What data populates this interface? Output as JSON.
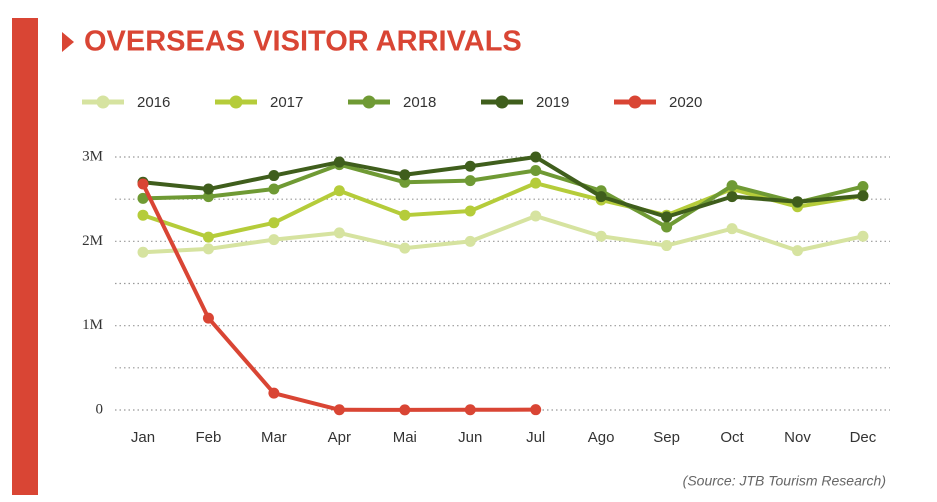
{
  "chart_data": {
    "type": "line",
    "title": "OVERSEAS VISITOR ARRIVALS",
    "source": "(Source: JTB Tourism Research)",
    "categories": [
      "Jan",
      "Feb",
      "Mar",
      "Apr",
      "Mai",
      "Jun",
      "Jul",
      "Ago",
      "Sep",
      "Oct",
      "Nov",
      "Dec"
    ],
    "series": [
      {
        "name": "2016",
        "color": "#d6e3a0",
        "values": [
          1870000,
          1910000,
          2020000,
          2100000,
          1920000,
          2000000,
          2300000,
          2060000,
          1950000,
          2150000,
          1890000,
          2060000
        ]
      },
      {
        "name": "2017",
        "color": "#b5cc3a",
        "values": [
          2310000,
          2050000,
          2220000,
          2600000,
          2310000,
          2360000,
          2690000,
          2490000,
          2310000,
          2620000,
          2410000,
          2540000
        ]
      },
      {
        "name": "2018",
        "color": "#6f9a34",
        "values": [
          2510000,
          2530000,
          2620000,
          2910000,
          2700000,
          2720000,
          2840000,
          2600000,
          2170000,
          2660000,
          2460000,
          2650000
        ]
      },
      {
        "name": "2019",
        "color": "#3f5e1c",
        "values": [
          2700000,
          2620000,
          2780000,
          2940000,
          2790000,
          2890000,
          3000000,
          2530000,
          2290000,
          2530000,
          2470000,
          2540000
        ]
      },
      {
        "name": "2020",
        "color": "#d94534",
        "values": [
          2680000,
          1090000,
          200000,
          2900,
          1700,
          2600,
          3800,
          null,
          null,
          null,
          null,
          null
        ]
      }
    ],
    "ylim": [
      0,
      3000000
    ],
    "yticks": [
      0,
      {
        "value": 1000000,
        "label": "1M"
      },
      {
        "value": 2000000,
        "label": "2M"
      },
      {
        "value": 3000000,
        "label": "3M"
      }
    ],
    "minor_yticks": [
      500000,
      1500000,
      2500000
    ],
    "grid": true
  }
}
